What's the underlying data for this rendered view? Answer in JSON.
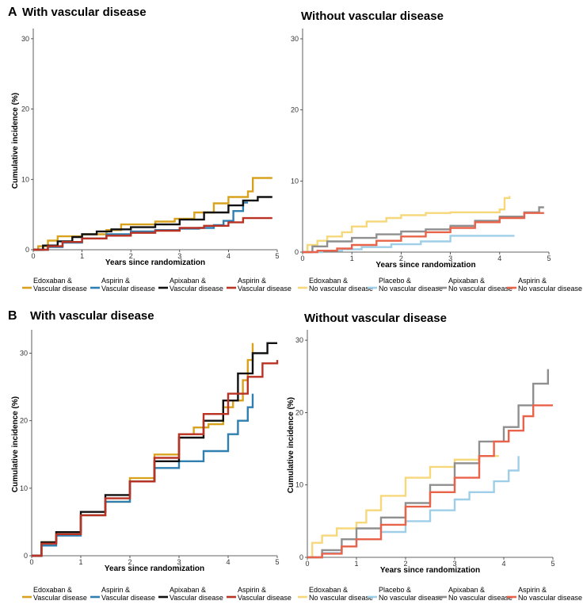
{
  "figure": {
    "panel_a_letter": "A",
    "panel_b_letter": "B",
    "ylabel": "Cumulative incidence (%)",
    "xlabel": "Years since randomization"
  },
  "colors": {
    "edoxaban": "#d9a21e",
    "aspirin_vasc": "#2f7fb0",
    "apixaban_vasc": "#111111",
    "aspirin_red": "#b93223",
    "edoxaban_light": "#f6d77a",
    "placebo": "#9fcfe8",
    "apixaban_gray": "#8f8f8f",
    "aspirin_salmon": "#e8634a"
  },
  "chart_data": [
    {
      "id": "A1",
      "type": "line",
      "title": "With vascular disease",
      "xlabel": "Years since randomization",
      "ylabel": "Cumulative incidence (%)",
      "xlim": [
        0,
        5
      ],
      "ylim": [
        0,
        31
      ],
      "xticks": [
        0,
        1,
        2,
        3,
        4,
        5
      ],
      "yticks": [
        0,
        10,
        20,
        30
      ],
      "series": [
        {
          "name": "Edoxaban & Vascular disease",
          "color": "#d9a21e",
          "x": [
            0,
            0.1,
            0.3,
            0.5,
            1.0,
            1.5,
            1.8,
            2.5,
            2.9,
            3.3,
            3.7,
            4.0,
            4.4,
            4.5,
            4.9
          ],
          "y": [
            0,
            0.5,
            1.3,
            1.9,
            2.2,
            2.8,
            3.6,
            4.0,
            4.4,
            5.3,
            6.6,
            7.5,
            8.3,
            10.2,
            10.2
          ]
        },
        {
          "name": "Aspirin & Vascular disease",
          "color": "#2f7fb0",
          "x": [
            0,
            0.3,
            0.6,
            1.0,
            1.5,
            2.0,
            2.5,
            3.0,
            3.4,
            3.7,
            3.9,
            4.1,
            4.3,
            4.4
          ],
          "y": [
            0,
            0.4,
            1.0,
            1.6,
            2.2,
            2.6,
            2.8,
            3.0,
            3.1,
            3.5,
            4.1,
            5.5,
            6.7,
            6.7
          ]
        },
        {
          "name": "Apixaban & Vascular disease",
          "color": "#111111",
          "x": [
            0,
            0.2,
            0.5,
            0.8,
            1.0,
            1.3,
            1.6,
            2.0,
            2.5,
            3.0,
            3.5,
            4.0,
            4.3,
            4.6,
            4.9
          ],
          "y": [
            0,
            0.6,
            1.2,
            1.8,
            2.2,
            2.6,
            2.9,
            3.2,
            3.6,
            4.3,
            5.3,
            6.3,
            7.0,
            7.5,
            7.5
          ]
        },
        {
          "name": "Aspirin & Vascular disease",
          "color": "#b93223",
          "x": [
            0,
            0.3,
            0.6,
            1.0,
            1.5,
            2.0,
            2.5,
            3.0,
            3.5,
            4.0,
            4.3,
            4.9
          ],
          "y": [
            0,
            0.5,
            1.1,
            1.6,
            2.0,
            2.4,
            2.7,
            3.1,
            3.4,
            3.9,
            4.5,
            4.5
          ]
        }
      ]
    },
    {
      "id": "A2",
      "type": "line",
      "title": "Without vascular disease",
      "xlabel": "Years since randomization",
      "ylabel": "",
      "xlim": [
        0,
        5
      ],
      "ylim": [
        0,
        31
      ],
      "xticks": [
        0,
        1,
        2,
        3,
        4,
        5
      ],
      "yticks": [
        0,
        10,
        20,
        30
      ],
      "series": [
        {
          "name": "Edoxaban & No vascular disease",
          "color": "#f6d77a",
          "x": [
            0,
            0.1,
            0.3,
            0.5,
            0.8,
            1.0,
            1.3,
            1.7,
            2.0,
            2.5,
            3.0,
            3.5,
            4.0,
            4.1,
            4.2
          ],
          "y": [
            0,
            1.0,
            1.6,
            2.2,
            2.8,
            3.6,
            4.3,
            4.8,
            5.2,
            5.5,
            5.6,
            5.6,
            6.0,
            7.6,
            7.9
          ]
        },
        {
          "name": "Placebo & No vascular disease",
          "color": "#9fcfe8",
          "x": [
            0,
            0.4,
            0.8,
            1.2,
            1.8,
            2.4,
            3.0,
            3.5,
            4.3
          ],
          "y": [
            0,
            0.2,
            0.4,
            0.7,
            1.1,
            1.5,
            2.3,
            2.3,
            2.3
          ]
        },
        {
          "name": "Apixaban & No vascular disease",
          "color": "#8f8f8f",
          "x": [
            0,
            0.2,
            0.5,
            1.0,
            1.5,
            2.0,
            2.5,
            3.0,
            3.5,
            4.0,
            4.5,
            4.8,
            4.9
          ],
          "y": [
            0,
            0.8,
            1.5,
            2.0,
            2.5,
            2.9,
            3.2,
            3.7,
            4.4,
            5.0,
            5.6,
            6.3,
            6.3
          ]
        },
        {
          "name": "Aspirin & No vascular disease",
          "color": "#e8634a",
          "x": [
            0,
            0.3,
            0.7,
            1.0,
            1.5,
            2.0,
            2.5,
            3.0,
            3.5,
            4.0,
            4.5,
            4.9
          ],
          "y": [
            0,
            0.2,
            0.5,
            1.0,
            1.6,
            2.2,
            2.8,
            3.4,
            4.2,
            4.8,
            5.5,
            5.5
          ]
        }
      ]
    },
    {
      "id": "B1",
      "type": "line",
      "title": "With vascular disease",
      "xlabel": "Years since randomization",
      "ylabel": "Cumulative incidence (%)",
      "xlim": [
        0,
        5
      ],
      "ylim": [
        0,
        33
      ],
      "xticks": [
        0,
        1,
        2,
        3,
        4,
        5
      ],
      "yticks": [
        0,
        10,
        20,
        30
      ],
      "series": [
        {
          "name": "Edoxaban & Vascular disease",
          "color": "#d9a21e",
          "x": [
            0,
            0.2,
            0.5,
            1.0,
            1.5,
            2.0,
            2.5,
            3.0,
            3.3,
            3.6,
            3.9,
            4.1,
            4.3,
            4.4,
            4.5
          ],
          "y": [
            0,
            2.0,
            3.5,
            6.0,
            8.0,
            11.5,
            15.0,
            18.0,
            19.0,
            19.5,
            22.0,
            23.0,
            26.0,
            29.0,
            31.5
          ]
        },
        {
          "name": "Aspirin & Vascular disease",
          "color": "#2f7fb0",
          "x": [
            0,
            0.2,
            0.5,
            1.0,
            1.5,
            2.0,
            2.5,
            3.0,
            3.5,
            4.0,
            4.2,
            4.4,
            4.5
          ],
          "y": [
            0,
            1.5,
            3.0,
            6.0,
            8.0,
            11.0,
            13.0,
            14.0,
            15.5,
            18.0,
            20.0,
            22.0,
            24.0
          ]
        },
        {
          "name": "Apixaban & Vascular disease",
          "color": "#111111",
          "x": [
            0,
            0.2,
            0.5,
            1.0,
            1.5,
            2.0,
            2.5,
            3.0,
            3.5,
            3.9,
            4.2,
            4.5,
            4.8,
            5.0
          ],
          "y": [
            0,
            2.0,
            3.5,
            6.5,
            9.0,
            11.0,
            14.0,
            17.5,
            20.0,
            23.0,
            27.0,
            30.0,
            31.5,
            31.5
          ]
        },
        {
          "name": "Aspirin & Vascular disease",
          "color": "#b93223",
          "x": [
            0,
            0.2,
            0.5,
            1.0,
            1.5,
            2.0,
            2.5,
            3.0,
            3.5,
            4.0,
            4.4,
            4.7,
            5.0
          ],
          "y": [
            0,
            1.8,
            3.2,
            6.0,
            8.5,
            11.0,
            14.5,
            18.0,
            21.0,
            24.0,
            26.5,
            28.5,
            29.0
          ]
        }
      ]
    },
    {
      "id": "B2",
      "type": "line",
      "title": "Without vascular disease",
      "xlabel": "Years since randomization",
      "ylabel": "Cumulative incidence (%)",
      "xlim": [
        0,
        5
      ],
      "ylim": [
        0,
        31
      ],
      "xticks": [
        0,
        1,
        2,
        3,
        4,
        5
      ],
      "yticks": [
        0,
        10,
        20,
        30
      ],
      "series": [
        {
          "name": "Edoxaban & No vascular disease",
          "color": "#f6d77a",
          "x": [
            0,
            0.1,
            0.3,
            0.6,
            1.0,
            1.2,
            1.5,
            2.0,
            2.5,
            3.0,
            3.5,
            3.9
          ],
          "y": [
            0,
            2.0,
            3.0,
            4.0,
            4.8,
            6.5,
            8.5,
            11.0,
            12.5,
            13.5,
            14.0,
            14.0
          ]
        },
        {
          "name": "Placebo & No vascular disease",
          "color": "#9fcfe8",
          "x": [
            0,
            0.3,
            0.7,
            1.0,
            1.5,
            2.0,
            2.5,
            3.0,
            3.3,
            3.8,
            4.1,
            4.3
          ],
          "y": [
            0,
            0.6,
            1.5,
            2.5,
            3.5,
            5.0,
            6.5,
            8.0,
            9.0,
            10.5,
            12.0,
            14.0
          ]
        },
        {
          "name": "Apixaban & No vascular disease",
          "color": "#8f8f8f",
          "x": [
            0,
            0.3,
            0.7,
            1.0,
            1.5,
            2.0,
            2.5,
            3.0,
            3.5,
            4.0,
            4.3,
            4.6,
            4.9
          ],
          "y": [
            0,
            1.0,
            2.5,
            4.0,
            5.5,
            7.5,
            10.0,
            13.0,
            16.0,
            18.0,
            21.0,
            24.0,
            26.0
          ]
        },
        {
          "name": "Aspirin & No vascular disease",
          "color": "#e8634a",
          "x": [
            0,
            0.3,
            0.7,
            1.0,
            1.5,
            2.0,
            2.5,
            3.0,
            3.5,
            3.8,
            4.1,
            4.4,
            4.6,
            5.0
          ],
          "y": [
            0,
            0.5,
            1.5,
            2.5,
            4.5,
            7.0,
            9.0,
            11.0,
            14.0,
            16.0,
            17.5,
            19.5,
            21.0,
            21.0
          ]
        }
      ]
    }
  ],
  "legends": {
    "vascular": [
      {
        "line1": "Edoxaban &",
        "line2": "Vascular disease",
        "color": "#d9a21e"
      },
      {
        "line1": "Aspirin &",
        "line2": "Vascular disease",
        "color": "#2f7fb0"
      },
      {
        "line1": "Apixaban &",
        "line2": "Vascular disease",
        "color": "#111111"
      },
      {
        "line1": "Aspirin &",
        "line2": "Vascular disease",
        "color": "#b93223"
      }
    ],
    "no_vascular": [
      {
        "line1": "Edoxaban &",
        "line2": "No vascular disease",
        "color": "#f6d77a"
      },
      {
        "line1": "Placebo &",
        "line2": "No vascular disease",
        "color": "#9fcfe8"
      },
      {
        "line1": "Apixaban &",
        "line2": "No vascular disease",
        "color": "#8f8f8f"
      },
      {
        "line1": "Aspirin &",
        "line2": "No vascular disease",
        "color": "#e8634a"
      }
    ]
  }
}
